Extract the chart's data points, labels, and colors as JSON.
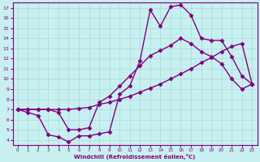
{
  "xlabel": "Windchill (Refroidissement éolien,°C)",
  "bg_color": "#c8f0f0",
  "line_color": "#800080",
  "grid_color": "#aadada",
  "xlim": [
    -0.5,
    23.5
  ],
  "ylim": [
    3.5,
    17.5
  ],
  "xticks": [
    0,
    1,
    2,
    3,
    4,
    5,
    6,
    7,
    8,
    9,
    10,
    11,
    12,
    13,
    14,
    15,
    16,
    17,
    18,
    19,
    20,
    21,
    22,
    23
  ],
  "yticks": [
    4,
    5,
    6,
    7,
    8,
    9,
    10,
    11,
    12,
    13,
    14,
    15,
    16,
    17
  ],
  "curve1_x": [
    0,
    1,
    2,
    3,
    4,
    5,
    6,
    7,
    8,
    9,
    10,
    11,
    12,
    13,
    14,
    15,
    16,
    17,
    18,
    19,
    20,
    21,
    22,
    23
  ],
  "curve1_y": [
    7.0,
    6.7,
    6.4,
    4.5,
    4.3,
    3.8,
    4.4,
    4.4,
    4.6,
    4.8,
    8.5,
    9.3,
    11.8,
    16.8,
    15.2,
    17.1,
    17.3,
    16.3,
    14.0,
    13.8,
    13.8,
    12.2,
    10.3,
    9.5
  ],
  "curve2_x": [
    0,
    1,
    2,
    3,
    4,
    5,
    6,
    7,
    8,
    9,
    10,
    11,
    12,
    13,
    14,
    15,
    16,
    17,
    18,
    19,
    20,
    21,
    22,
    23
  ],
  "curve2_y": [
    7.0,
    7.0,
    7.0,
    7.0,
    7.0,
    7.0,
    7.1,
    7.2,
    7.5,
    7.7,
    8.0,
    8.3,
    8.7,
    9.1,
    9.5,
    10.0,
    10.5,
    11.0,
    11.6,
    12.1,
    12.7,
    13.2,
    13.5,
    9.5
  ],
  "curve3_x": [
    0,
    1,
    2,
    3,
    4,
    5,
    6,
    7,
    8,
    9,
    10,
    11,
    12,
    13,
    14,
    15,
    16,
    17,
    18,
    19,
    20,
    21,
    22,
    23
  ],
  "curve3_y": [
    7.0,
    7.0,
    7.0,
    7.0,
    6.7,
    5.0,
    5.0,
    5.2,
    7.7,
    8.3,
    9.3,
    10.3,
    11.3,
    12.3,
    12.8,
    13.3,
    14.0,
    13.5,
    12.7,
    12.2,
    11.5,
    10.0,
    9.0,
    9.5
  ],
  "marker": "D",
  "markersize": 2.5,
  "linewidth": 1.0
}
